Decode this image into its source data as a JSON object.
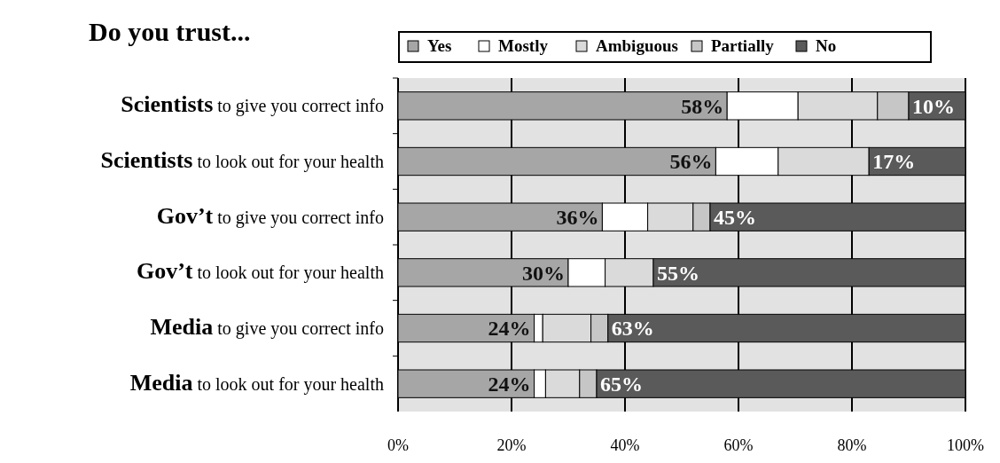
{
  "chart_data": {
    "type": "bar",
    "orientation": "horizontal",
    "stacked": true,
    "title": "Do you trust...",
    "categories": [
      "Scientists to give you correct info",
      "Scientists to look out for your health",
      "Gov’t to give you correct info",
      "Gov’t to look out for your health",
      "Media to give you correct info",
      "Media to look out for your health"
    ],
    "series": [
      {
        "name": "Yes",
        "color": "#a6a6a6",
        "values": [
          58,
          56,
          36,
          30,
          24,
          24
        ],
        "value_labels": [
          "58%",
          "56%",
          "36%",
          "30%",
          "24%",
          "24%"
        ]
      },
      {
        "name": "Mostly",
        "color": "#ffffff",
        "values": [
          12.5,
          11,
          8,
          6.5,
          1.5,
          2
        ]
      },
      {
        "name": "Ambiguous",
        "color": "#dadada",
        "values": [
          14,
          16,
          8,
          8.5,
          8.5,
          6
        ]
      },
      {
        "name": "Partially",
        "color": "#c6c6c6",
        "values": [
          5.5,
          0,
          3,
          0,
          3,
          3
        ]
      },
      {
        "name": "No",
        "color": "#5a5a5a",
        "values": [
          10,
          17,
          45,
          55,
          63,
          65
        ],
        "value_labels": [
          "10%",
          "17%",
          "45%",
          "55%",
          "63%",
          "65%"
        ]
      }
    ],
    "xlim": [
      0,
      100
    ],
    "xticks": [
      {
        "value": 0,
        "label": "0%"
      },
      {
        "value": 20,
        "label": "20%"
      },
      {
        "value": 40,
        "label": "40%"
      },
      {
        "value": 60,
        "label": "60%"
      },
      {
        "value": 80,
        "label": "80%"
      },
      {
        "value": 100,
        "label": "100%"
      }
    ],
    "grid": "x",
    "legend": "top"
  }
}
